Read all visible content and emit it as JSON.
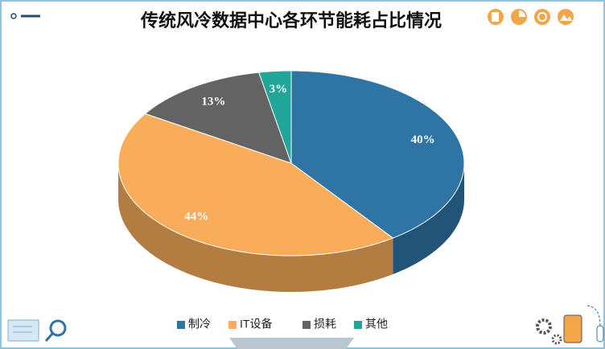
{
  "chart_data": {
    "type": "pie3d",
    "title": "传统风冷数据中心各环节能耗占比情况",
    "categories": [
      "制冷",
      "IT设备",
      "损耗",
      "其他"
    ],
    "values": [
      40,
      44,
      13,
      3
    ],
    "value_labels": [
      "40%",
      "44%",
      "13%",
      "3%"
    ],
    "colors": [
      "#2e75a6",
      "#f9ac5a",
      "#636363",
      "#22a699"
    ],
    "legend": "bottom"
  }
}
